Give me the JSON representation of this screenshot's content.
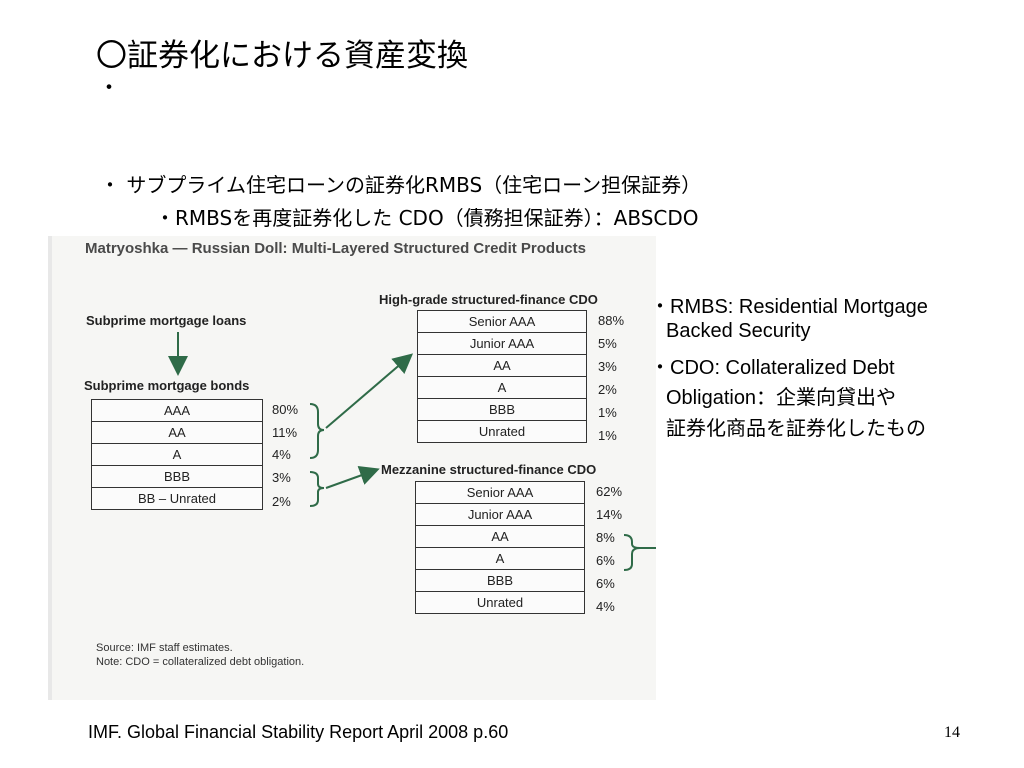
{
  "slide": {
    "title": "〇証券化における資産変換",
    "bullet_mark": "・",
    "line1": "・ サブプライム住宅ローンの証券化RMBS（住宅ローン担保証券）",
    "line2": "・RMBSを再度証券化した CDO（債務担保証券）：ABSCDO",
    "footer": "IMF. Global Financial Stability Report  April 2008 p.60",
    "page_number": "14"
  },
  "figure": {
    "title": "Matryoshka — Russian Doll: Multi-Layered Structured Credit Products",
    "loans_label": "Subprime mortgage loans",
    "bonds_label": "Subprime mortgage bonds",
    "bonds": [
      {
        "tranche": "AAA",
        "pct": "80%"
      },
      {
        "tranche": "AA",
        "pct": "11%"
      },
      {
        "tranche": "A",
        "pct": "4%"
      },
      {
        "tranche": "BBB",
        "pct": "3%"
      },
      {
        "tranche": "BB – Unrated",
        "pct": "2%"
      }
    ],
    "hg_label": "High-grade structured-finance CDO",
    "hg": [
      {
        "tranche": "Senior AAA",
        "pct": "88%"
      },
      {
        "tranche": "Junior AAA",
        "pct": "5%"
      },
      {
        "tranche": "AA",
        "pct": "3%"
      },
      {
        "tranche": "A",
        "pct": "2%"
      },
      {
        "tranche": "BBB",
        "pct": "1%"
      },
      {
        "tranche": "Unrated",
        "pct": "1%"
      }
    ],
    "mz_label": "Mezzanine structured-finance CDO",
    "mz": [
      {
        "tranche": "Senior AAA",
        "pct": "62%"
      },
      {
        "tranche": "Junior AAA",
        "pct": "14%"
      },
      {
        "tranche": "AA",
        "pct": "8%"
      },
      {
        "tranche": "A",
        "pct": "6%"
      },
      {
        "tranche": "BBB",
        "pct": "6%"
      },
      {
        "tranche": "Unrated",
        "pct": "4%"
      }
    ],
    "source": "Source: IMF staff estimates.",
    "note": "Note: CDO = collateralized debt obligation."
  },
  "notes": {
    "rmbs_1": "・RMBS: Residential Mortgage",
    "rmbs_2": "Backed Security",
    "cdo_1": "・CDO: Collateralized Debt",
    "cdo_2": "Obligation：企業向貸出や",
    "cdo_3": "証券化商品を証券化したもの"
  }
}
